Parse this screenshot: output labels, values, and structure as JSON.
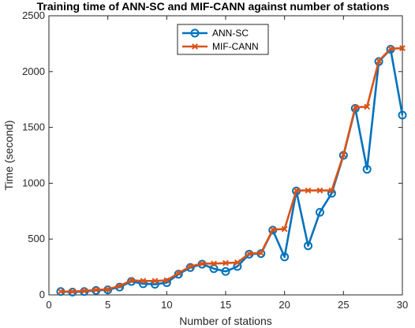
{
  "chart_data": {
    "type": "line",
    "title": "Training time of ANN-SC and MIF-CANN against number of stations",
    "xlabel": "Number of stations",
    "ylabel": "Time (second)",
    "xlim": [
      0,
      30
    ],
    "ylim": [
      0,
      2500
    ],
    "xticks": [
      0,
      5,
      10,
      15,
      20,
      25,
      30
    ],
    "yticks": [
      0,
      500,
      1000,
      1500,
      2000,
      2500
    ],
    "grid": false,
    "legend_position": "top-center",
    "x": [
      1,
      2,
      3,
      4,
      5,
      6,
      7,
      8,
      9,
      10,
      11,
      12,
      13,
      14,
      15,
      16,
      17,
      18,
      19,
      20,
      21,
      22,
      23,
      24,
      25,
      26,
      27,
      28,
      29,
      30
    ],
    "series": [
      {
        "name": "ANN-SC",
        "color": "#0072BD",
        "marker": "circle",
        "values": [
          30,
          25,
          30,
          40,
          45,
          70,
          120,
          100,
          95,
          110,
          185,
          245,
          275,
          235,
          210,
          255,
          365,
          370,
          580,
          340,
          930,
          440,
          740,
          910,
          1250,
          1670,
          1125,
          2090,
          2200,
          1610
        ]
      },
      {
        "name": "MIF-CANN",
        "color": "#D95319",
        "marker": "x",
        "values": [
          30,
          30,
          35,
          45,
          50,
          80,
          130,
          125,
          125,
          130,
          195,
          255,
          280,
          280,
          285,
          290,
          370,
          375,
          585,
          590,
          935,
          935,
          935,
          935,
          1255,
          1680,
          1685,
          2095,
          2205,
          2210
        ]
      }
    ]
  }
}
